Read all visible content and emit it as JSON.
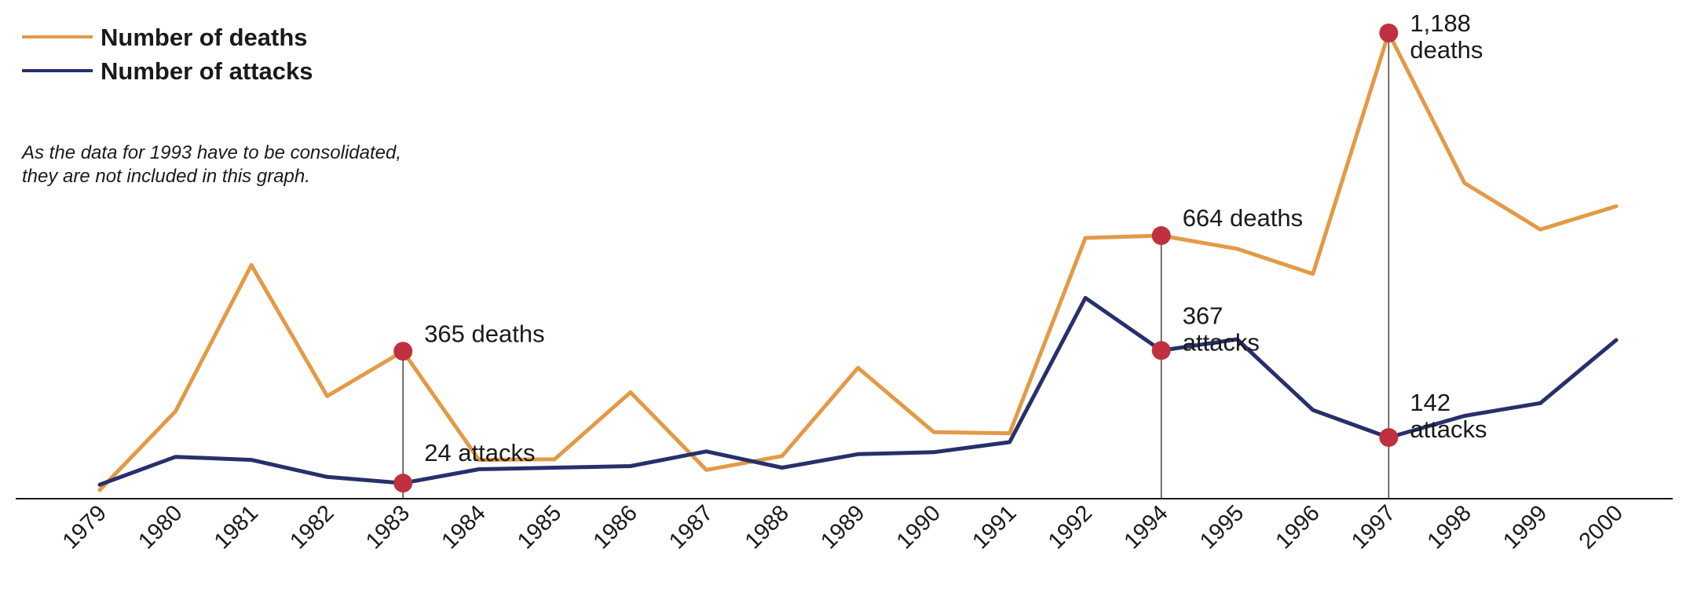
{
  "legend": {
    "deaths_label": "Number of deaths",
    "attacks_label": "Number of attacks"
  },
  "note": {
    "line1": "As the data for 1993 have to be consolidated,",
    "line2": "they are not included in this graph."
  },
  "colors": {
    "deaths": "#e39a46",
    "attacks": "#27306b",
    "marker": "#c0313f",
    "axis": "#1a1a1a",
    "guide": "#444444"
  },
  "chart_data": {
    "type": "line",
    "categories": [
      "1979",
      "1980",
      "1981",
      "1982",
      "1983",
      "1984",
      "1985",
      "1986",
      "1987",
      "1988",
      "1989",
      "1990",
      "1991",
      "1992",
      "1994",
      "1995",
      "1996",
      "1997",
      "1998",
      "1999",
      "2000"
    ],
    "series": [
      {
        "name": "Number of deaths",
        "values": [
          6,
          210,
          588,
          249,
          365,
          84,
          86,
          259,
          58,
          94,
          322,
          156,
          153,
          658,
          664,
          630,
          565,
          1188,
          800,
          680,
          740
        ]
      },
      {
        "name": "Number of attacks",
        "values": [
          20,
          92,
          84,
          40,
          24,
          60,
          64,
          68,
          106,
          64,
          99,
          104,
          130,
          503,
          367,
          396,
          213,
          142,
          198,
          231,
          394
        ]
      }
    ],
    "annotations": [
      {
        "series": 0,
        "index": 4,
        "lines": [
          "365 deaths"
        ]
      },
      {
        "series": 1,
        "index": 4,
        "lines": [
          "24 attacks"
        ]
      },
      {
        "series": 0,
        "index": 14,
        "lines": [
          "664 deaths"
        ]
      },
      {
        "series": 1,
        "index": 14,
        "lines": [
          "367",
          "attacks"
        ]
      },
      {
        "series": 0,
        "index": 17,
        "lines": [
          "1,188",
          "deaths"
        ]
      },
      {
        "series": 1,
        "index": 17,
        "lines": [
          "142",
          "attacks"
        ]
      }
    ],
    "guide_indices": [
      4,
      14,
      17
    ],
    "xlabel": "",
    "ylabel": "",
    "grid": false,
    "legend_position": "top-left"
  }
}
